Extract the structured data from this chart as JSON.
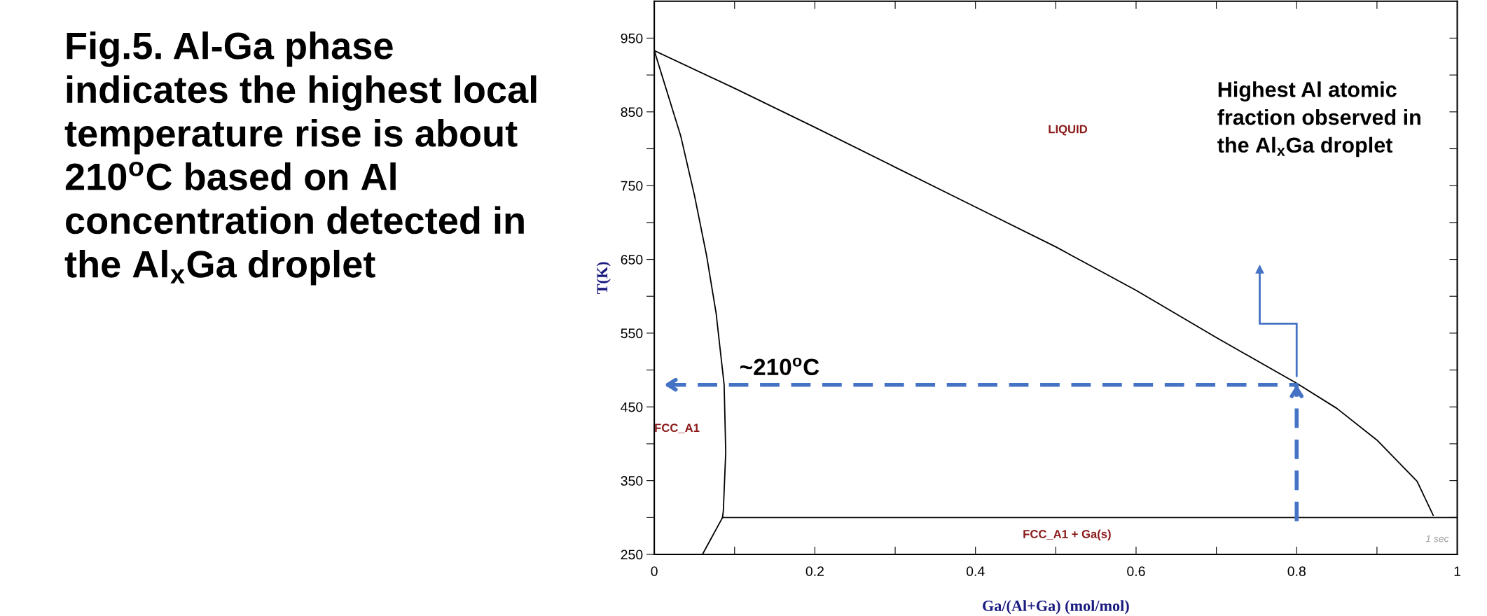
{
  "chart_data": {
    "type": "line",
    "title": "Fig.5. Al-Ga phase indicates the highest local temperature rise is about 210$^{o}$C based on Al concentration detected in the Al$_{x}$Ga droplet",
    "xlabel": "Ga/(Al+Ga) (mol/mol)",
    "ylabel": "T(K)",
    "xlim": [
      0,
      1
    ],
    "ylim": [
      250,
      1000
    ],
    "xticks": [
      0,
      {
        "value": 0.1,
        "label": null
      },
      0.2,
      {
        "value": 0.3,
        "label": null
      },
      0.4,
      {
        "value": 0.5,
        "label": null
      },
      0.6,
      {
        "value": 0.7,
        "label": null
      },
      0.8,
      {
        "value": 0.9,
        "label": null
      },
      1
    ],
    "yticks": [
      250,
      {
        "value": 300,
        "label": null
      },
      350,
      {
        "value": 400,
        "label": null
      },
      450,
      {
        "value": 500,
        "label": null
      },
      550,
      {
        "value": 600,
        "label": null
      },
      650,
      {
        "value": 700,
        "label": null
      },
      750,
      {
        "value": 800,
        "label": null
      },
      850,
      {
        "value": 900,
        "label": null
      },
      950
    ],
    "grid": false,
    "legend": false,
    "marker": "none",
    "series": [
      {
        "color": "#000000",
        "x": [
          0,
          0.1,
          0.2,
          0.3,
          0.4,
          0.5,
          0.6,
          0.7,
          0.8,
          0.85,
          0.9,
          0.95,
          0.97
        ],
        "values": [
          933,
          882,
          829,
          775,
          721,
          667,
          608,
          544,
          482,
          448,
          405,
          349,
          303
        ]
      },
      {
        "color": "#000000",
        "x": [
          0,
          0.033,
          0.05,
          0.065,
          0.077,
          0.087,
          0.089,
          0.086,
          0.085,
          0.06
        ],
        "values": [
          933,
          817,
          737,
          656,
          577,
          480,
          389,
          309,
          300,
          250
        ]
      },
      {
        "color": "#000000",
        "x": [
          0.085,
          1
        ],
        "values": [
          300,
          300
        ]
      },
      {
        "color": "#4472c4",
        "line_style": "dashed",
        "x": [
          0.8,
          0.8,
          0.01
        ],
        "values": [
          295,
          480,
          480
        ]
      }
    ],
    "annotations": [
      "LIQUID",
      "FCC_A1",
      "FCC_A1 + Ga(s)",
      "1 sec",
      "~210$^{o}$C",
      "Highest Al atomic fraction observed in the Al$_{x}$Ga droplet"
    ]
  }
}
